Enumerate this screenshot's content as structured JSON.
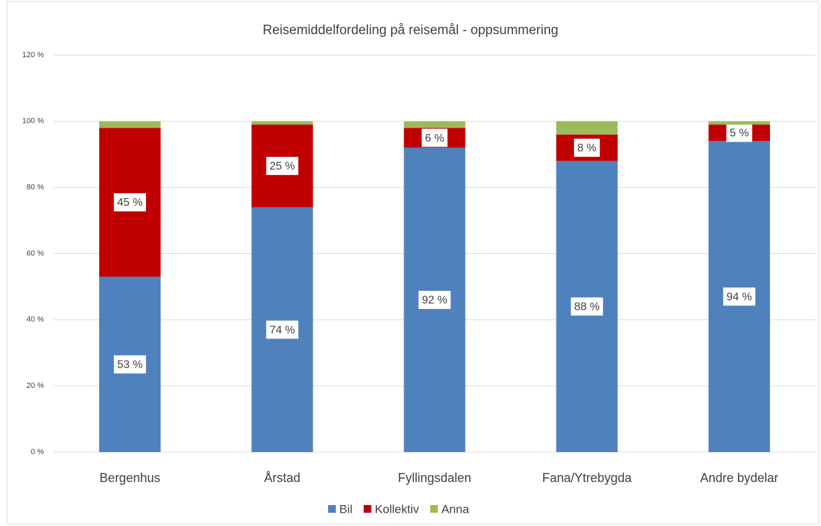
{
  "chart_data": {
    "type": "stacked_bar",
    "title": "Reisemiddelfordeling  på reisemål - oppsummering",
    "categories": [
      "Bergenhus",
      "Årstad",
      "Fyllingsdalen",
      "Fana/Ytrebygda",
      "Andre bydelar"
    ],
    "series": [
      {
        "name": "Bil",
        "color": "#4f81bd",
        "values": [
          53,
          74,
          92,
          88,
          94
        ],
        "value_labels": [
          "53 %",
          "74 %",
          "92 %",
          "88 %",
          "94 %"
        ]
      },
      {
        "name": "Kollektiv",
        "color": "#c00000",
        "values": [
          45,
          25,
          6,
          8,
          5
        ],
        "value_labels": [
          "45 %",
          "25 %",
          "6 %",
          "8 %",
          "5 %"
        ]
      },
      {
        "name": "Anna",
        "color": "#9bbb59",
        "values": [
          2,
          1,
          2,
          4,
          1
        ]
      }
    ],
    "ylim": [
      0,
      120
    ],
    "yticks": [
      {
        "value": 0,
        "label": "0 %"
      },
      {
        "value": 20,
        "label": "20 %"
      },
      {
        "value": 40,
        "label": "40 %"
      },
      {
        "value": 60,
        "label": "60 %"
      },
      {
        "value": 80,
        "label": "80 %"
      },
      {
        "value": 100,
        "label": "100 %"
      },
      {
        "value": 120,
        "label": "120 %"
      }
    ],
    "grid": true,
    "legend": "bottom"
  }
}
